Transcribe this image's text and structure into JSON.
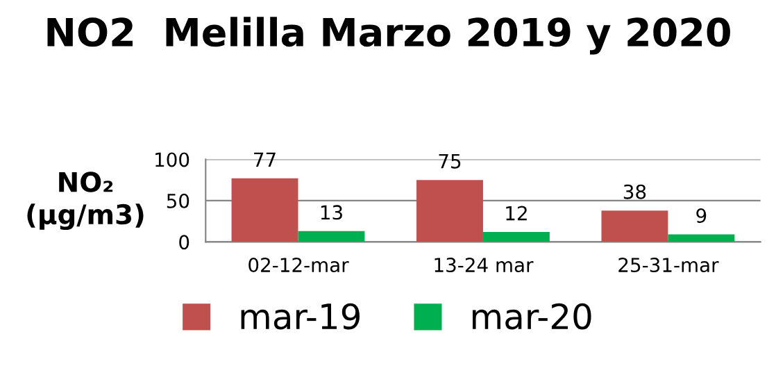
{
  "chart_data": {
    "type": "bar",
    "title": "NO2  Melilla Marzo 2019 y 2020",
    "ylabel": "NO₂\n(µg/m3)",
    "categories": [
      "02-12-mar",
      "13-24 mar",
      "25-31-mar"
    ],
    "series": [
      {
        "name": "mar-19",
        "color": "#c0504d",
        "values": [
          77,
          75,
          38
        ]
      },
      {
        "name": "mar-20",
        "color": "#00b050",
        "values": [
          13,
          12,
          9
        ]
      }
    ],
    "ylim": [
      0,
      100
    ],
    "yticks": [
      0,
      50,
      100
    ],
    "grid": "y",
    "legend": "bottom",
    "data_labels": true
  }
}
